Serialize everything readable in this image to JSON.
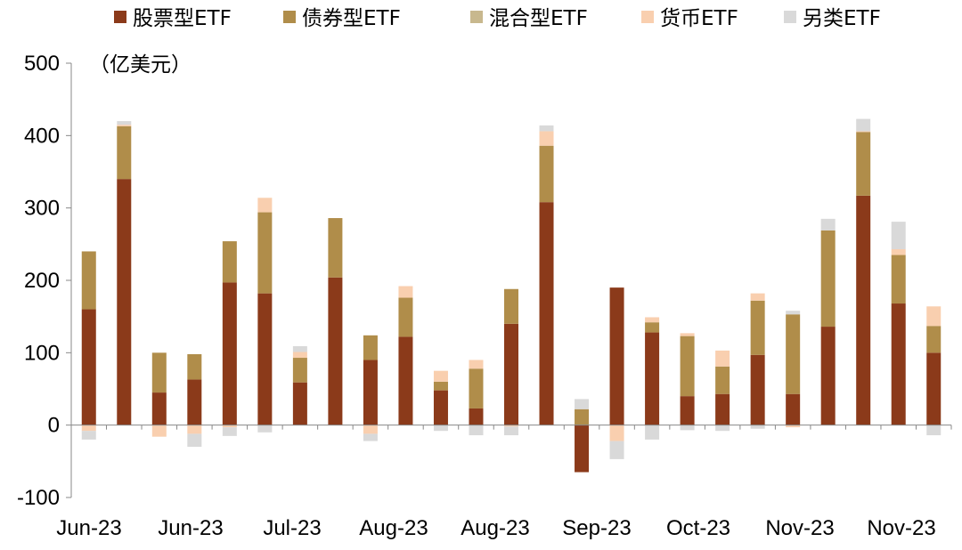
{
  "chart_data": {
    "type": "bar",
    "stacked": true,
    "unit_label": "（亿美元）",
    "ylim": [
      -100,
      500
    ],
    "yticks": [
      -100,
      0,
      100,
      200,
      300,
      400,
      500
    ],
    "xtick_labels": [
      "Jun-23",
      "Jun-23",
      "Jul-23",
      "Aug-23",
      "Aug-23",
      "Sep-23",
      "Oct-23",
      "Nov-23",
      "Nov-23"
    ],
    "legend_position": "top",
    "grid": false,
    "series": [
      {
        "name": "股票型ETF",
        "color": "#8B3A1A",
        "values": [
          160,
          340,
          45,
          63,
          197,
          182,
          59,
          204,
          90,
          122,
          48,
          23,
          140,
          308,
          -65,
          190,
          128,
          40,
          43,
          97,
          43,
          136,
          317,
          168,
          100
        ]
      },
      {
        "name": "债券型ETF",
        "color": "#B08D4A",
        "values": [
          80,
          73,
          55,
          35,
          57,
          112,
          34,
          82,
          34,
          54,
          12,
          55,
          48,
          78,
          22,
          0,
          14,
          83,
          38,
          75,
          110,
          133,
          88,
          67,
          37
        ]
      },
      {
        "name": "混合型ETF",
        "color": "#C8B88E",
        "values": [
          0,
          0,
          0,
          0,
          0,
          0,
          0,
          0,
          0,
          0,
          0,
          0,
          0,
          0,
          0,
          0,
          0,
          0,
          0,
          0,
          0,
          0,
          0,
          0,
          0
        ]
      },
      {
        "name": "货币ETF",
        "color": "#F9CFAF",
        "values": [
          -8,
          2,
          -16,
          -12,
          -3,
          20,
          8,
          0,
          -12,
          16,
          15,
          12,
          -2,
          20,
          0,
          -22,
          7,
          4,
          22,
          10,
          -3,
          0,
          1,
          8,
          27
        ]
      },
      {
        "name": "另类ETF",
        "color": "#D9D9D9",
        "values": [
          -12,
          5,
          0,
          -18,
          -12,
          -10,
          8,
          0,
          -10,
          0,
          -8,
          -14,
          -12,
          8,
          14,
          -25,
          -20,
          -7,
          -8,
          -5,
          5,
          16,
          17,
          38,
          -14
        ]
      }
    ]
  }
}
